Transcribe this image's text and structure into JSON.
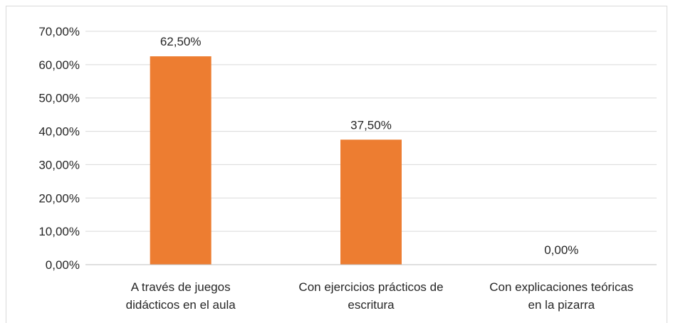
{
  "chart_data": {
    "type": "bar",
    "categories": [
      [
        "A través de juegos",
        "didácticos en el aula"
      ],
      [
        "Con ejercicios prácticos de",
        "escritura"
      ],
      [
        "Con explicaciones teóricas",
        "en la pizarra"
      ]
    ],
    "values": [
      62.5,
      37.5,
      0
    ],
    "data_labels": [
      "62,50%",
      "37,50%",
      "0,00%"
    ],
    "y_ticks": [
      0,
      10,
      20,
      30,
      40,
      50,
      60,
      70
    ],
    "y_tick_labels": [
      "0,00%",
      "10,00%",
      "20,00%",
      "30,00%",
      "40,00%",
      "50,00%",
      "60,00%",
      "70,00%"
    ],
    "ylim": [
      0,
      70
    ],
    "grid": true,
    "legend": "none",
    "bar_color": "#ED7D31",
    "grid_color": "#D9D9D9",
    "axis_color": "#BFBFBF"
  }
}
